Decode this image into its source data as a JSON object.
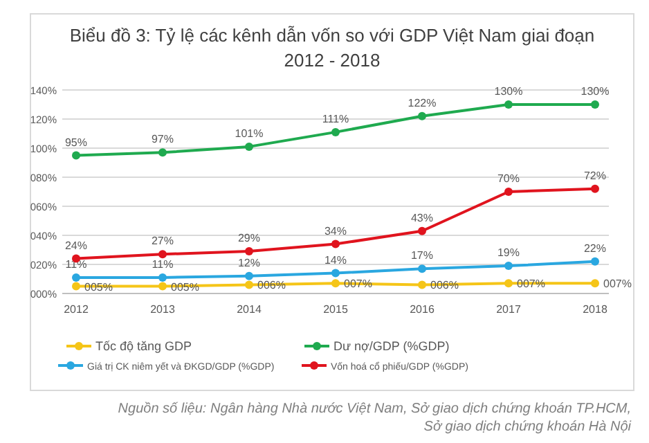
{
  "chart_data": {
    "type": "line",
    "title": "Biểu đồ 3: Tỷ lệ các kênh dẫn vốn so với GDP Việt Nam giai đoạn 2012 - 2018",
    "categories": [
      "2012",
      "2013",
      "2014",
      "2015",
      "2016",
      "2017",
      "2018"
    ],
    "series": [
      {
        "name": "Tốc  độ tăng GDP",
        "color": "#f5c518",
        "values": [
          5,
          5,
          6,
          7,
          6,
          7,
          7
        ],
        "value_labels": [
          "005%",
          "005%",
          "006%",
          "007%",
          "006%",
          "007%",
          "007%"
        ]
      },
      {
        "name": "Dư nợ/GDP (%GDP)",
        "color": "#1faa4f",
        "values": [
          95,
          97,
          101,
          111,
          122,
          130,
          130
        ],
        "value_labels": [
          "95%",
          "97%",
          "101%",
          "111%",
          "122%",
          "130%",
          "130%"
        ]
      },
      {
        "name": "Giá trị CK niêm yết và ĐKGD/GDP (%GDP)",
        "color": "#2aa7e0",
        "values": [
          11,
          11,
          12,
          14,
          17,
          19,
          22
        ],
        "value_labels": [
          "11%",
          "11%",
          "12%",
          "14%",
          "17%",
          "19%",
          "22%"
        ]
      },
      {
        "name": "Vốn hoá cổ phiếu/GDP (%GDP)",
        "color": "#e0141e",
        "values": [
          24,
          27,
          29,
          34,
          43,
          70,
          72
        ],
        "value_labels": [
          "24%",
          "27%",
          "29%",
          "34%",
          "43%",
          "70%",
          "72%"
        ]
      }
    ],
    "ylim": [
      0,
      140
    ],
    "yticks": [
      {
        "value": 0,
        "label": "000%"
      },
      {
        "value": 20,
        "label": "020%"
      },
      {
        "value": 40,
        "label": "040%"
      },
      {
        "value": 60,
        "label": "060%"
      },
      {
        "value": 80,
        "label": "080%"
      },
      {
        "value": 100,
        "label": "100%"
      },
      {
        "value": 120,
        "label": "120%"
      },
      {
        "value": 140,
        "label": "140%"
      }
    ],
    "grid": "y",
    "legend": "bottom",
    "marker": "circle",
    "line_style": "solid",
    "annotations": [
      "Nguồn số liệu: Ngân hàng Nhà nước Việt Nam, Sở giao dịch chứng khoán TP.HCM,",
      "Sở giao dịch chứng khoán Hà Nội"
    ]
  }
}
